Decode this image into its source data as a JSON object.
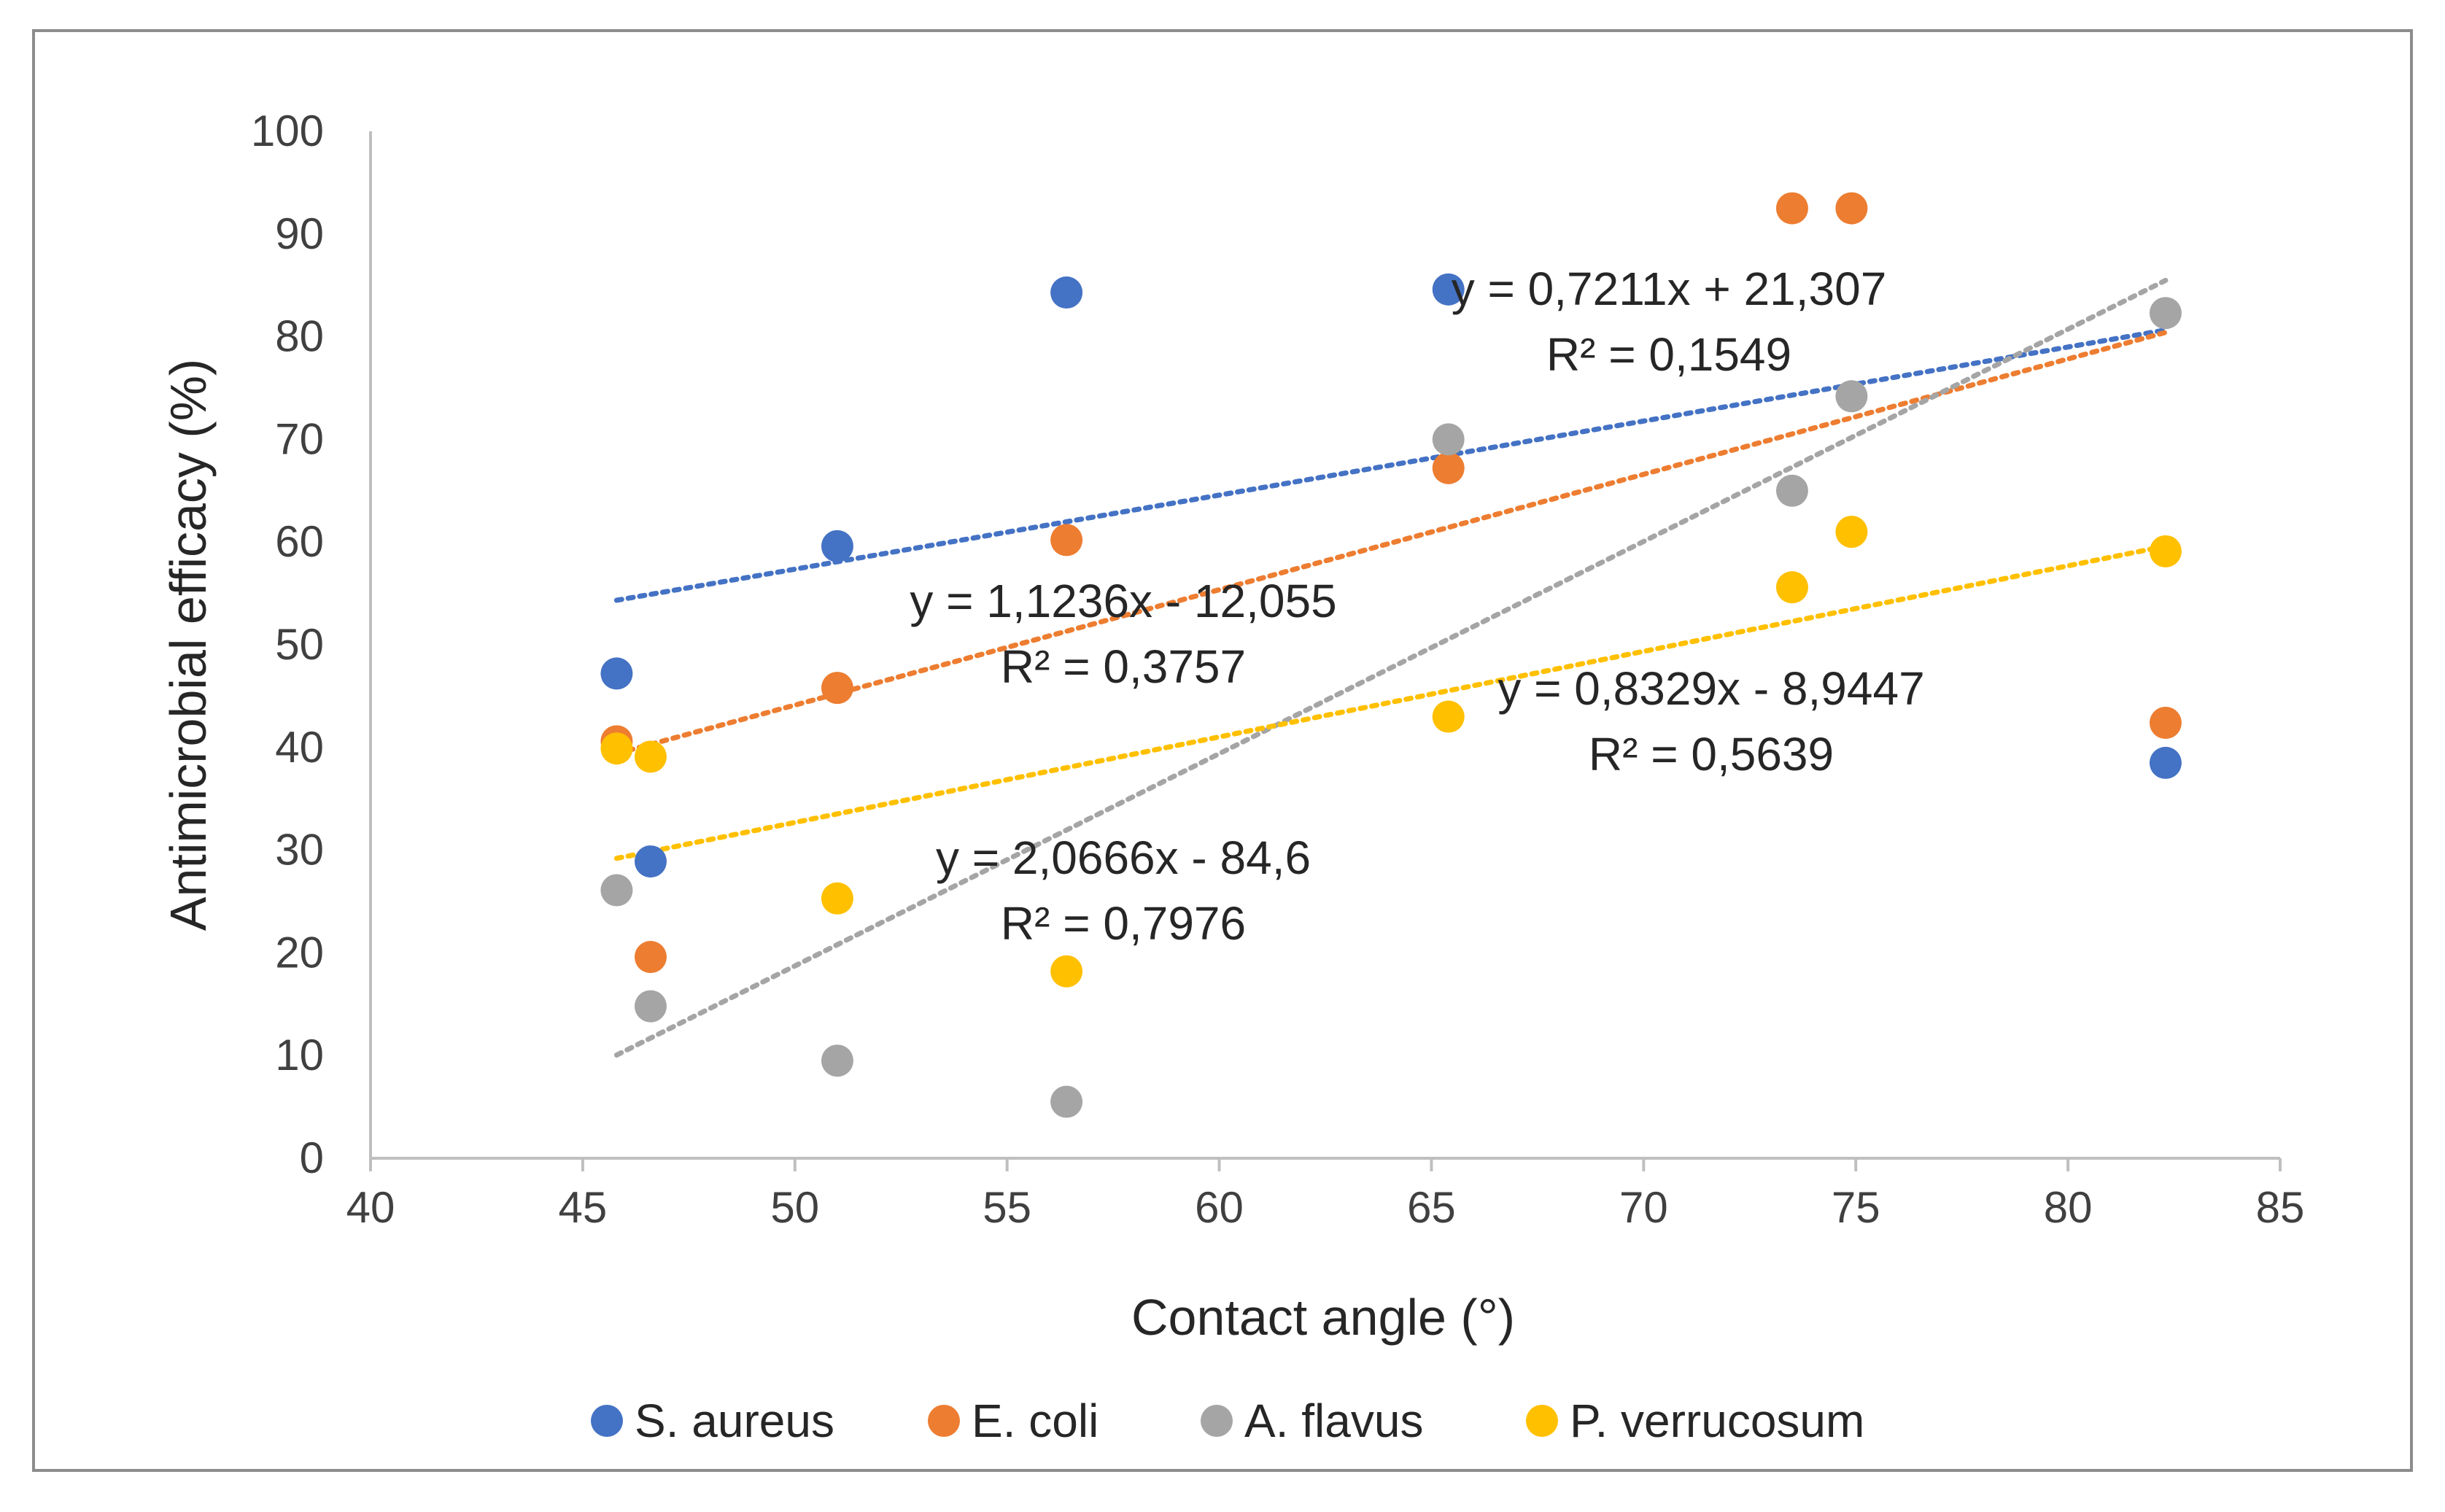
{
  "chart_data": {
    "type": "scatter",
    "title": "",
    "xlabel": "Contact angle (°)",
    "ylabel": "Antimicrobial efficacy (%)",
    "xlim": [
      40,
      85
    ],
    "ylim": [
      0,
      100
    ],
    "x_ticks": [
      40,
      45,
      50,
      55,
      60,
      65,
      70,
      75,
      80,
      85
    ],
    "y_ticks": [
      0,
      10,
      20,
      30,
      40,
      50,
      60,
      70,
      80,
      90,
      100
    ],
    "legend_position": "bottom",
    "grid": false,
    "series": [
      {
        "name": "S. aureus",
        "color": "#4472C4",
        "points": [
          [
            45.8,
            47.2
          ],
          [
            46.6,
            28.9
          ],
          [
            51.0,
            59.6
          ],
          [
            56.4,
            84.3
          ],
          [
            65.4,
            84.6
          ],
          [
            82.3,
            38.5
          ]
        ],
        "trendline": {
          "type": "linear",
          "slope": 0.7211,
          "intercept": 21.307,
          "x_range": [
            45.8,
            82.3
          ]
        },
        "equation": "y = 0,7211x + 21,307",
        "r2": "R² = 0,1549"
      },
      {
        "name": "E. coli",
        "color": "#ED7D31",
        "points": [
          [
            45.8,
            40.6
          ],
          [
            46.6,
            19.6
          ],
          [
            51.0,
            45.8
          ],
          [
            56.4,
            60.2
          ],
          [
            65.4,
            67.2
          ],
          [
            73.5,
            92.5
          ],
          [
            74.9,
            92.5
          ],
          [
            82.3,
            42.4
          ]
        ],
        "trendline": {
          "type": "linear",
          "slope": 1.1236,
          "intercept": -12.055,
          "x_range": [
            45.8,
            82.3
          ]
        },
        "equation": "y = 1,1236x - 12,055",
        "r2": "R² = 0,3757"
      },
      {
        "name": "A. flavus",
        "color": "#A5A5A5",
        "points": [
          [
            45.8,
            26.1
          ],
          [
            46.6,
            14.8
          ],
          [
            51.0,
            9.5
          ],
          [
            56.4,
            5.5
          ],
          [
            65.4,
            70.0
          ],
          [
            73.5,
            65.0
          ],
          [
            74.9,
            74.2
          ],
          [
            82.3,
            82.3
          ]
        ],
        "trendline": {
          "type": "linear",
          "slope": 2.0666,
          "intercept": -84.6,
          "x_range": [
            45.8,
            82.3
          ]
        },
        "equation": "y = 2,0666x - 84,6",
        "r2": "R² = 0,7976"
      },
      {
        "name": "P. verrucosum",
        "color": "#FFC000",
        "points": [
          [
            45.8,
            39.9
          ],
          [
            46.6,
            39.1
          ],
          [
            51.0,
            25.3
          ],
          [
            56.4,
            18.2
          ],
          [
            65.4,
            43.0
          ],
          [
            73.5,
            55.6
          ],
          [
            74.9,
            61.0
          ],
          [
            82.3,
            59.1
          ]
        ],
        "trendline": {
          "type": "linear",
          "slope": 0.8329,
          "intercept": -8.9447,
          "x_range": [
            45.8,
            82.3
          ]
        },
        "equation": "y = 0,8329x - 8,9447",
        "r2": "R² = 0,5639"
      }
    ]
  }
}
